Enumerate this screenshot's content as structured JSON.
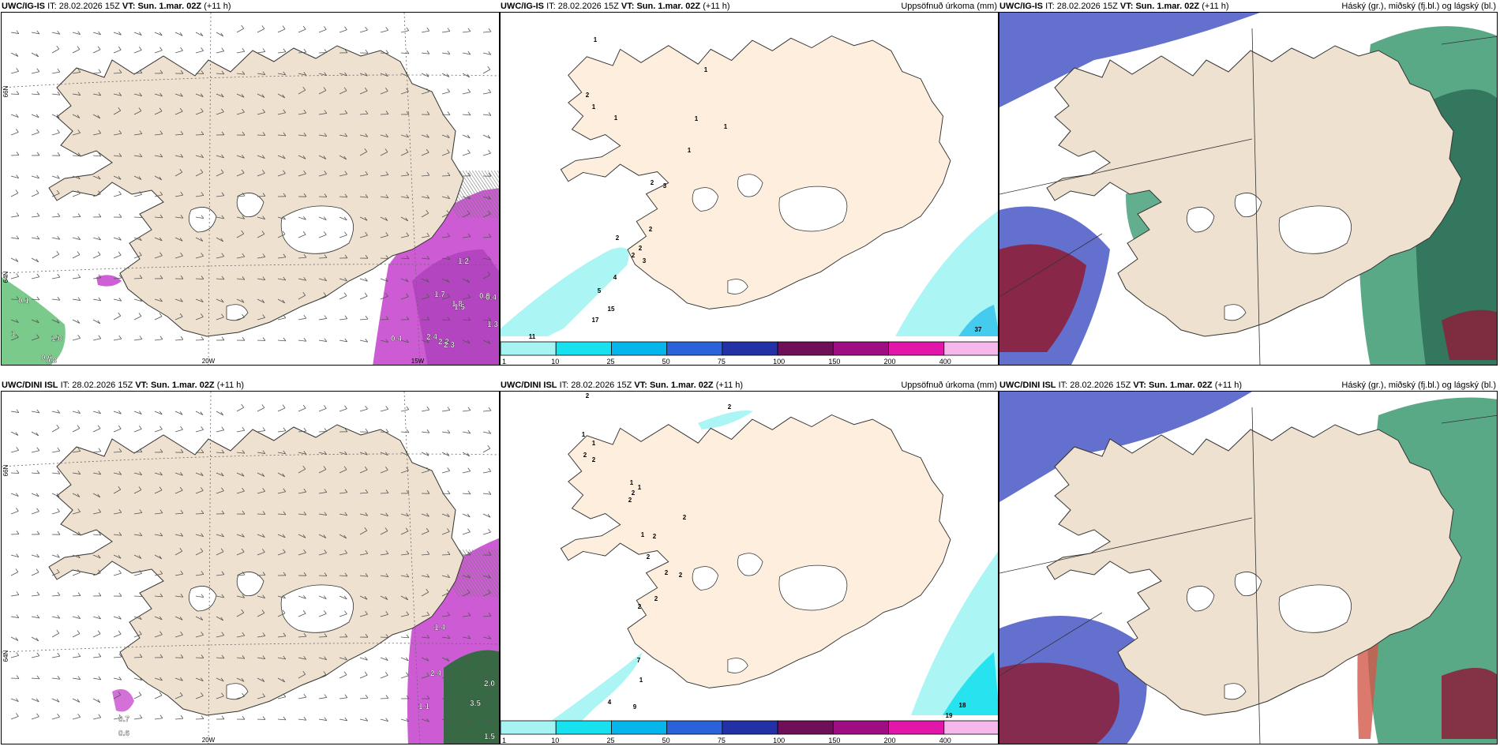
{
  "rows": [
    {
      "model": "UWC/IG-IS",
      "it_label": "IT:",
      "it_value": "28.02.2026 15Z",
      "vt_label": "VT:",
      "vt_value": "Sun. 1.mar. 02Z",
      "lead": "(+11 h)",
      "precip_title": "Uppsöfnuð úrkoma (mm)",
      "cloud_title": "Háský (gr.), miðský (fj.bl.) og lágský (bl.)",
      "precip_values": [
        "1",
        "1",
        "2",
        "1",
        "1",
        "1",
        "1",
        "1",
        "2",
        "3",
        "2",
        "2",
        "2",
        "2",
        "3",
        "4",
        "5",
        "15",
        "17",
        "11",
        "37"
      ],
      "wind_labels": [
        "1.2",
        "1.7",
        "1.8",
        "1.5",
        "0.9",
        "0.4",
        "1.3",
        "2.4",
        "2.2",
        "2.3",
        "0.4",
        "0.1",
        "1.0",
        "0.6",
        "0.8",
        "1"
      ]
    },
    {
      "model": "UWC/DINI ISL",
      "it_label": "IT:",
      "it_value": "28.02.2026 15Z",
      "vt_label": "VT:",
      "vt_value": "Sun. 1.mar. 02Z",
      "lead": "(+11 h)",
      "precip_title": "Uppsöfnuð úrkoma (mm)",
      "cloud_title": "Háský (gr.), miðský (fj.bl.) og lágský (bl.)",
      "precip_values": [
        "2",
        "2",
        "1",
        "1",
        "2",
        "2",
        "1",
        "1",
        "2",
        "2",
        "2",
        "1",
        "2",
        "2",
        "2",
        "2",
        "2",
        "2",
        "7",
        "1",
        "4",
        "9",
        "19",
        "18"
      ],
      "wind_labels": [
        "1.4",
        "2.4",
        "1.1",
        "2.0",
        "3.5",
        "1.5",
        "0.7",
        "0.6"
      ]
    }
  ],
  "grid_labels": {
    "lat66": "66N",
    "lat64": "64N",
    "lon20": "20W",
    "lon15": "15W"
  },
  "legend": {
    "ticks": [
      "1",
      "10",
      "25",
      "50",
      "75",
      "100",
      "150",
      "200",
      "400"
    ],
    "colors": [
      "#a5f3f3",
      "#17e1ee",
      "#06b6ea",
      "#2b62dc",
      "#2232a6",
      "#6f0f5a",
      "#9e0d82",
      "#e216a8",
      "#f5b7ec"
    ]
  },
  "colors": {
    "land": "#efe1cf",
    "land_precip": "#fdeedd",
    "coast": "#333333",
    "wind_barb": "#555555",
    "precip_magenta": "#c94ed0",
    "precip_green": "#42b55a",
    "sea_precip": "#a6f4f4",
    "cloud_low": "#5361c8",
    "cloud_mid": "#3c9a72",
    "cloud_high": "#8c1f3a"
  }
}
